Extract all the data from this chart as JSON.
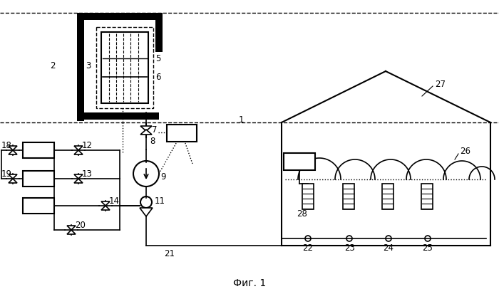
{
  "bg_color": "#ffffff",
  "line_color": "#000000",
  "label_fontsize": 8.5,
  "caption": "Фиг. 1",
  "caption_fontsize": 10
}
